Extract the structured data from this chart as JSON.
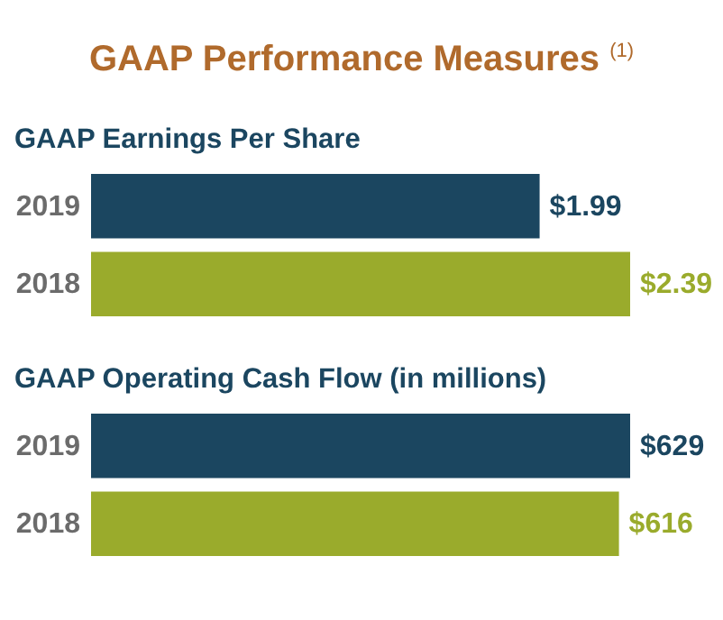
{
  "chart_data": [
    {
      "type": "bar",
      "orientation": "horizontal",
      "title": "GAAP Performance Measures $^{(1)}$",
      "subtitle": "GAAP Earnings Per Share",
      "categories": [
        "2019",
        "2018"
      ],
      "values": [
        1.99,
        2.39
      ],
      "colors": [
        "#1b4660",
        "#9aab2c"
      ],
      "value_labels": [
        "$1.99",
        "$2.39"
      ],
      "legend": false,
      "grid": false
    },
    {
      "type": "bar",
      "orientation": "horizontal",
      "title": "GAAP Operating Cash Flow (in millions)",
      "categories": [
        "2019",
        "2018"
      ],
      "values": [
        629,
        616
      ],
      "colors": [
        "#1b4660",
        "#9aab2c"
      ],
      "value_labels": [
        "$629",
        "$616"
      ],
      "legend": false,
      "grid": false
    }
  ]
}
